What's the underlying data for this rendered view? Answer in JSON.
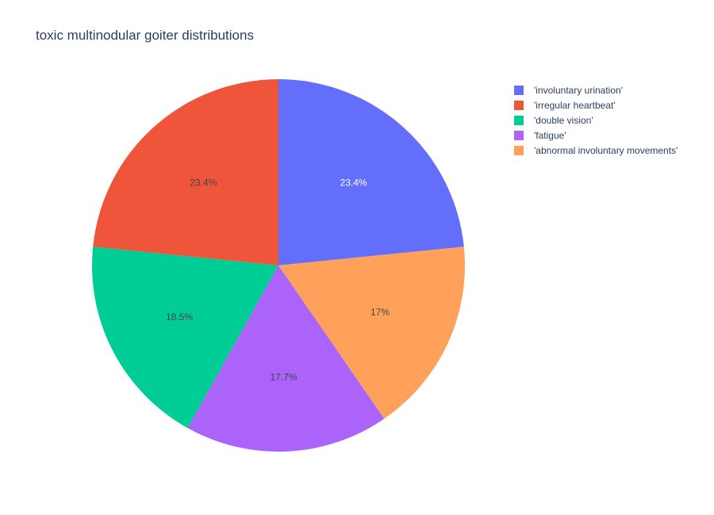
{
  "chart_data": {
    "type": "pie",
    "title": "toxic multinodular goiter distributions",
    "labels": [
      "'involuntary urination'",
      "'irregular heartbeat'",
      "'double vision'",
      "'fatigue'",
      "'abnormal involuntary movements'"
    ],
    "values": [
      23.4,
      23.4,
      18.5,
      17.7,
      17.0
    ],
    "value_labels": [
      "23.4%",
      "23.4%",
      "18.5%",
      "17.7%",
      "17%"
    ],
    "slice_order": [
      0,
      4,
      3,
      2,
      1
    ],
    "colors": [
      "#636efa",
      "#ef553b",
      "#00cc96",
      "#ab63fa",
      "#ffa15a"
    ],
    "label_colors": [
      "#ffffff",
      "#444444",
      "#444444",
      "#444444",
      "#444444"
    ],
    "start_angle_deg": 0,
    "direction": "clockwise",
    "legend_position": "top-right"
  }
}
